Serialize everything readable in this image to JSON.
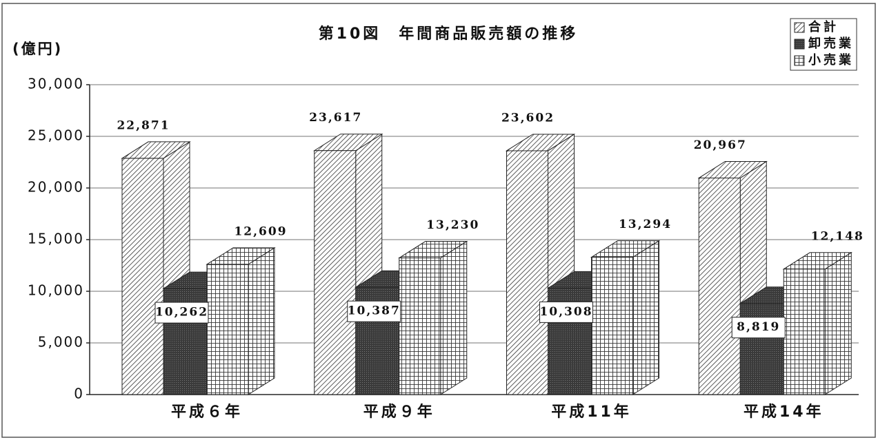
{
  "chart_data": {
    "type": "bar3d",
    "title": "第10図　年間商品販売額の推移",
    "y_label": "(億円)",
    "categories": [
      "平成６年",
      "平成９年",
      "平成11年",
      "平成14年"
    ],
    "series": [
      {
        "name": "合計",
        "color": "#333333",
        "pattern": "diagonal",
        "values": [
          22871,
          23617,
          23602,
          20967
        ],
        "value_labels": [
          "22,871",
          "23,617",
          "23,602",
          "20,967"
        ]
      },
      {
        "name": "卸売業",
        "color": "#3a3a3a",
        "pattern": "solid",
        "values": [
          10262,
          10387,
          10308,
          8819
        ],
        "value_labels": [
          "10,262",
          "10,387",
          "10,308",
          "8,819"
        ]
      },
      {
        "name": "小売業",
        "color": "#333333",
        "pattern": "grid",
        "values": [
          12609,
          13230,
          13294,
          12148
        ],
        "value_labels": [
          "12,609",
          "13,230",
          "13,294",
          "12,148"
        ]
      }
    ],
    "ylim": [
      0,
      30000
    ],
    "yticks": [
      0,
      {
        "value": 5000,
        "label": "5,000"
      },
      {
        "value": 10000,
        "label": "10,000"
      },
      {
        "value": 15000,
        "label": "15,000"
      },
      {
        "value": 20000,
        "label": "20,000"
      },
      {
        "value": 25000,
        "label": "25,000"
      },
      {
        "value": 30000,
        "label": "30,000"
      }
    ],
    "grid": true,
    "legend": "top-right"
  }
}
